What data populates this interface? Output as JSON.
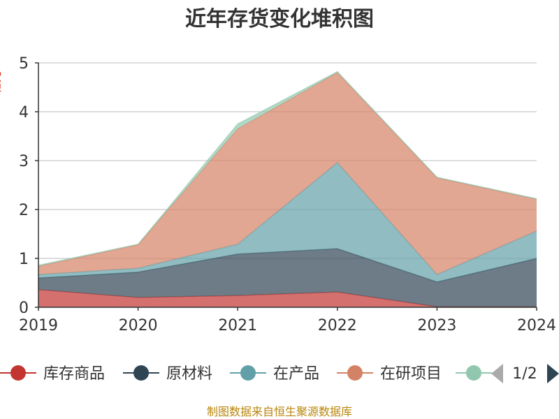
{
  "chart_data": {
    "type": "area",
    "stacked": true,
    "title": "近年存货变化堆积图",
    "ylabel": "亿元",
    "categories": [
      "2019",
      "2020",
      "2021",
      "2022",
      "2023",
      "2024"
    ],
    "ylim": [
      0,
      5
    ],
    "yticks": [
      "0",
      "1",
      "2",
      "3",
      "4",
      "5"
    ],
    "grid": true,
    "legend_position": "bottom",
    "series": [
      {
        "name": "库存商品",
        "color": "#c23531",
        "values": [
          0.36,
          0.2,
          0.24,
          0.31,
          0.01,
          0.01
        ]
      },
      {
        "name": "原材料",
        "color": "#2f4554",
        "values": [
          0.24,
          0.52,
          0.85,
          0.89,
          0.51,
          0.99
        ]
      },
      {
        "name": "在产品",
        "color": "#61a0a8",
        "values": [
          0.07,
          0.08,
          0.2,
          1.76,
          0.15,
          0.56
        ]
      },
      {
        "name": "在研项目",
        "color": "#d48265",
        "values": [
          0.17,
          0.48,
          2.36,
          1.84,
          1.98,
          0.65
        ]
      },
      {
        "name": "",
        "color": "#91c7ae",
        "values": [
          0.02,
          0.01,
          0.1,
          0.02,
          0.01,
          0.01
        ]
      }
    ]
  },
  "legend_pager": {
    "label": "1/2",
    "prev_icon": "triangle-left-icon",
    "next_icon": "triangle-right-icon"
  },
  "source_note": "制图数据来自恒生聚源数据库"
}
